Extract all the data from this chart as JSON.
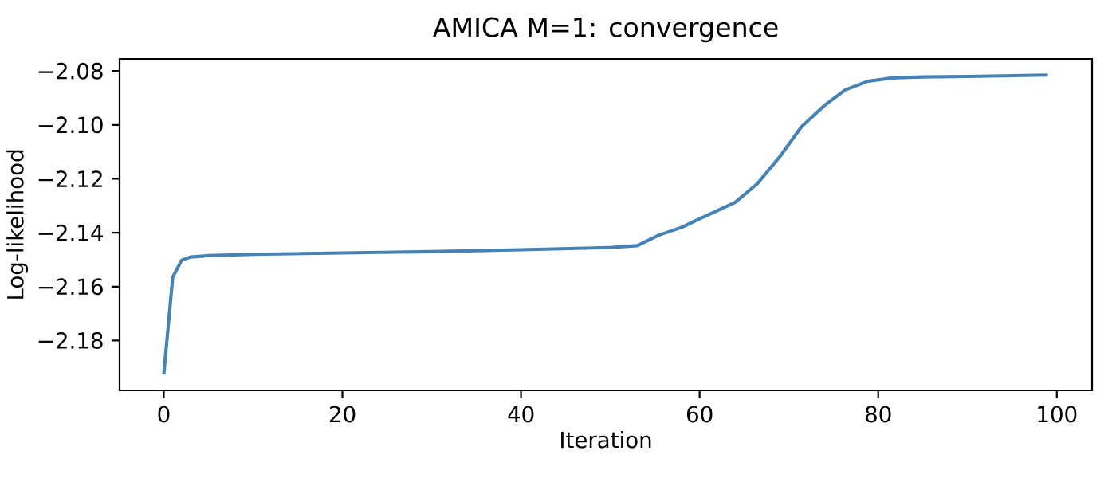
{
  "chart_data": {
    "type": "line",
    "title": "AMICA M=1: convergence",
    "xlabel": "Iteration",
    "ylabel": "Log-likelihood",
    "xlim": [
      -4.95,
      103.95
    ],
    "ylim": [
      -2.1985,
      -2.0755
    ],
    "xticks": [
      0,
      20,
      40,
      60,
      80,
      100
    ],
    "yticks": [
      {
        "value": -2.18,
        "label": "−2.18"
      },
      {
        "value": -2.16,
        "label": "−2.16"
      },
      {
        "value": -2.14,
        "label": "−2.14"
      },
      {
        "value": -2.12,
        "label": "−2.12"
      },
      {
        "value": -2.1,
        "label": "−2.10"
      },
      {
        "value": -2.08,
        "label": "−2.08"
      }
    ],
    "grid": false,
    "series": [
      {
        "color": "#4682b4",
        "x": [
          0,
          1,
          2,
          3,
          5,
          10,
          20,
          30,
          40,
          50,
          53,
          55.5,
          58,
          60,
          62,
          64,
          66.5,
          69,
          71.4,
          73.9,
          76.3,
          78.8,
          81,
          82,
          85,
          90,
          99
        ],
        "values": [
          -2.1926,
          -2.1565,
          -2.1502,
          -2.149,
          -2.1485,
          -2.148,
          -2.1475,
          -2.147,
          -2.1463,
          -2.1455,
          -2.1448,
          -2.1408,
          -2.138,
          -2.1348,
          -2.1318,
          -2.1287,
          -2.1217,
          -2.1117,
          -2.1007,
          -2.093,
          -2.087,
          -2.0838,
          -2.0828,
          -2.0825,
          -2.0822,
          -2.082,
          -2.0815
        ]
      }
    ]
  }
}
